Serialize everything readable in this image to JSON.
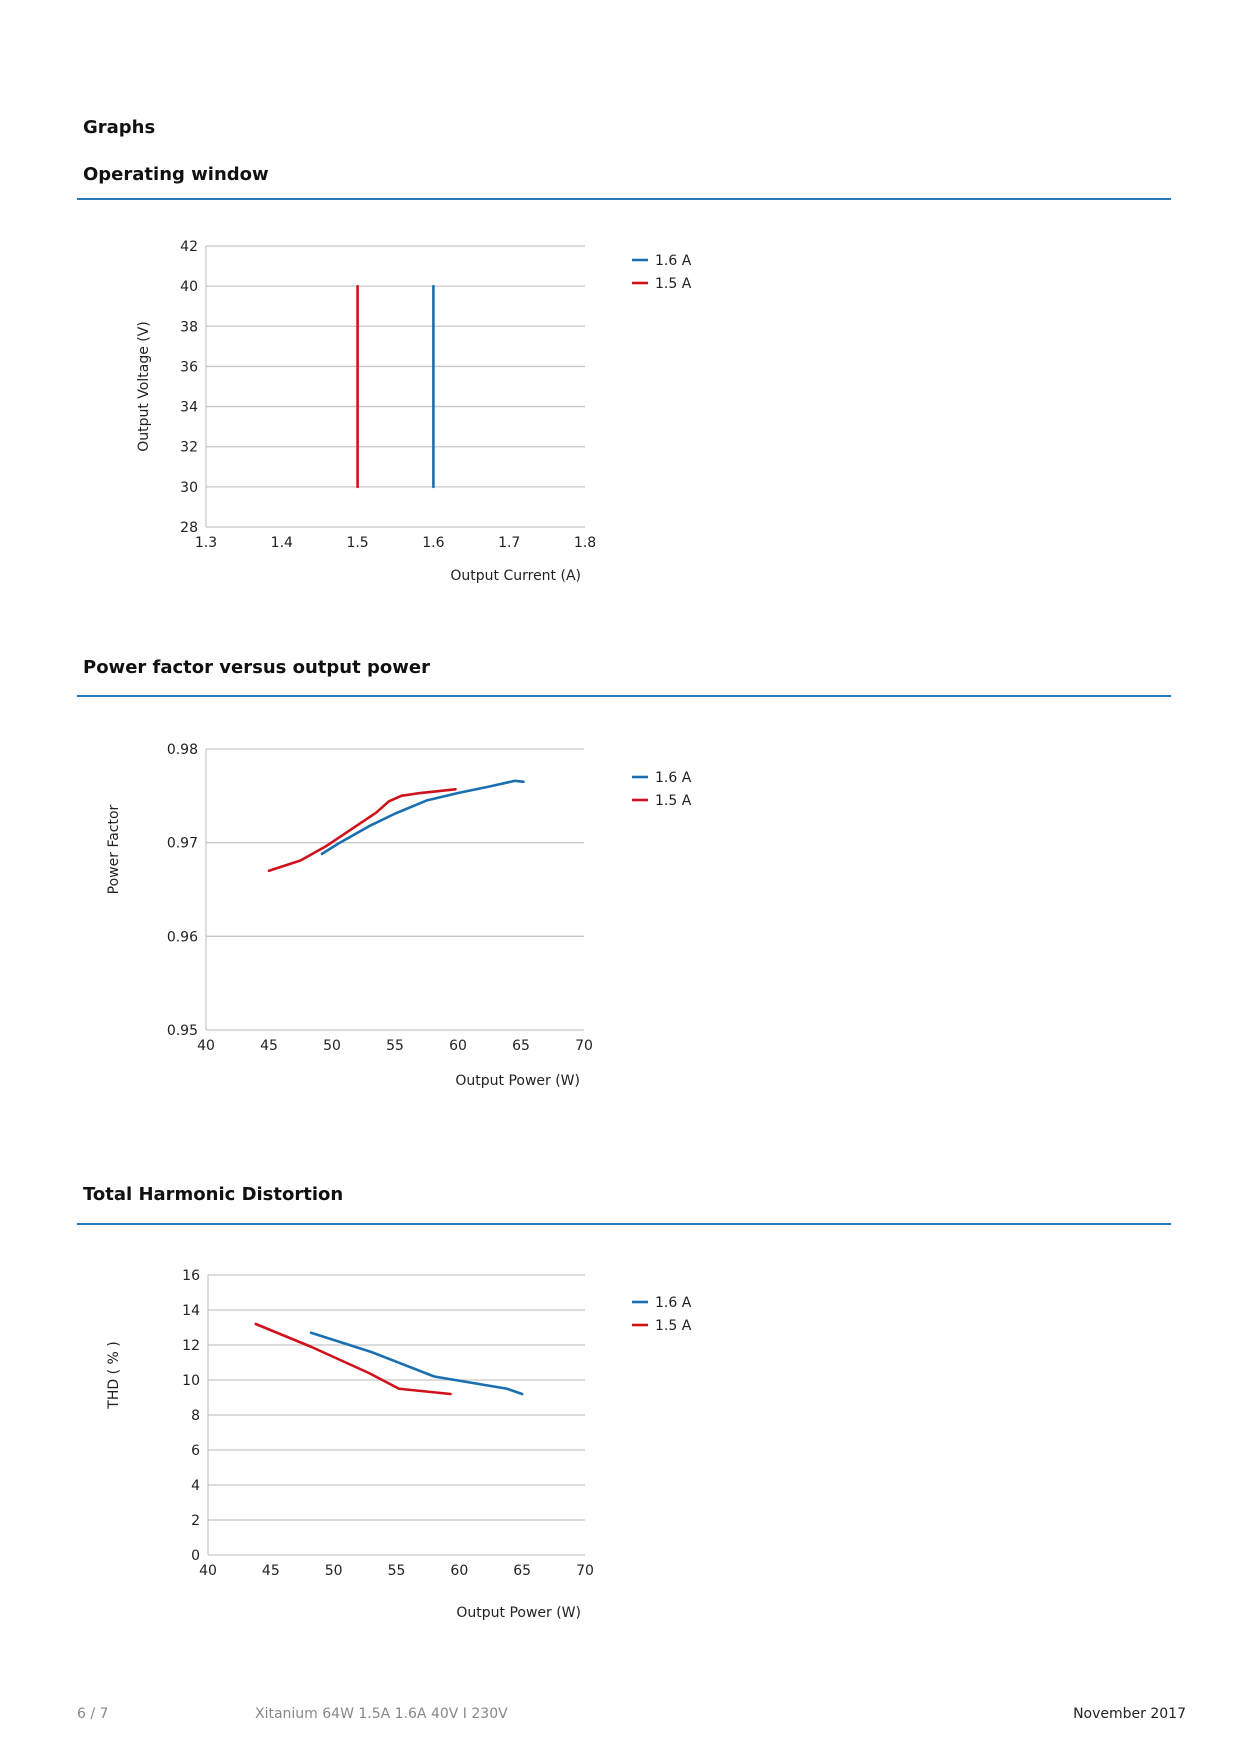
{
  "page": {
    "section_title": "Graphs",
    "footer": {
      "page": "6 / 7",
      "product": "Xitanium 64W 1.5A 1.6A 40V I 230V",
      "date": "November 2017"
    }
  },
  "colors": {
    "series_1_6A": "#1a6fb0",
    "series_1_5A": "#d0121c",
    "rule": "#2a7ab8",
    "grid": "#c8c8c8"
  },
  "chart_data": [
    {
      "type": "line",
      "title": "Operating window",
      "xlabel": "Output Current (A)",
      "ylabel": "Output Voltage (V)",
      "xlim": [
        1.3,
        1.8
      ],
      "ylim": [
        28,
        42
      ],
      "xticks": [
        "1.3",
        "1.4",
        "1.5",
        "1.6",
        "1.7",
        "1.8"
      ],
      "yticks": [
        "28",
        "30",
        "32",
        "34",
        "36",
        "38",
        "40",
        "42"
      ],
      "grid": true,
      "legend": "right",
      "series": [
        {
          "name": "1.6 A",
          "color": "#1a6fb0",
          "x": [
            1.6,
            1.6
          ],
          "y": [
            30,
            40
          ]
        },
        {
          "name": "1.5 A",
          "color": "#d0121c",
          "x": [
            1.5,
            1.5
          ],
          "y": [
            30,
            40
          ]
        }
      ]
    },
    {
      "type": "line",
      "title": "Power factor versus output power",
      "xlabel": "Output Power (W)",
      "ylabel": "Power Factor",
      "xlim": [
        40,
        70
      ],
      "ylim": [
        0.95,
        0.98
      ],
      "xticks": [
        "40",
        "45",
        "50",
        "55",
        "60",
        "65",
        "70"
      ],
      "yticks": [
        "0.95",
        "0.96",
        "0.97",
        "0.98"
      ],
      "grid": true,
      "legend": "right",
      "series": [
        {
          "name": "1.6 A",
          "color": "#1a6fb0",
          "x": [
            49.2,
            50.5,
            53,
            55,
            57.5,
            60,
            62.5,
            64.5,
            65.2
          ],
          "y": [
            0.9688,
            0.9699,
            0.9718,
            0.9731,
            0.9745,
            0.9753,
            0.976,
            0.9766,
            0.9765
          ]
        },
        {
          "name": "1.5 A",
          "color": "#d0121c",
          "x": [
            45,
            47.5,
            49.5,
            51.5,
            53.5,
            54.5,
            55.5,
            57,
            59.8
          ],
          "y": [
            0.967,
            0.9681,
            0.9696,
            0.9714,
            0.9732,
            0.9744,
            0.975,
            0.9753,
            0.9757
          ]
        }
      ]
    },
    {
      "type": "line",
      "title": "Total Harmonic Distortion",
      "xlabel": "Output Power (W)",
      "ylabel": "THD ( % )",
      "xlim": [
        40,
        70
      ],
      "ylim": [
        0,
        16
      ],
      "xticks": [
        "40",
        "45",
        "50",
        "55",
        "60",
        "65",
        "70"
      ],
      "yticks": [
        "0",
        "2",
        "4",
        "6",
        "8",
        "10",
        "12",
        "14",
        "16"
      ],
      "grid": true,
      "legend": "right",
      "series": [
        {
          "name": "1.6 A",
          "color": "#1a6fb0",
          "x": [
            48.2,
            53,
            58,
            63.8,
            65
          ],
          "y": [
            12.7,
            11.6,
            10.2,
            9.5,
            9.2
          ]
        },
        {
          "name": "1.5 A",
          "color": "#d0121c",
          "x": [
            43.8,
            48.2,
            52.8,
            55.2,
            59.3
          ],
          "y": [
            13.2,
            11.9,
            10.4,
            9.5,
            9.2
          ]
        }
      ]
    }
  ]
}
